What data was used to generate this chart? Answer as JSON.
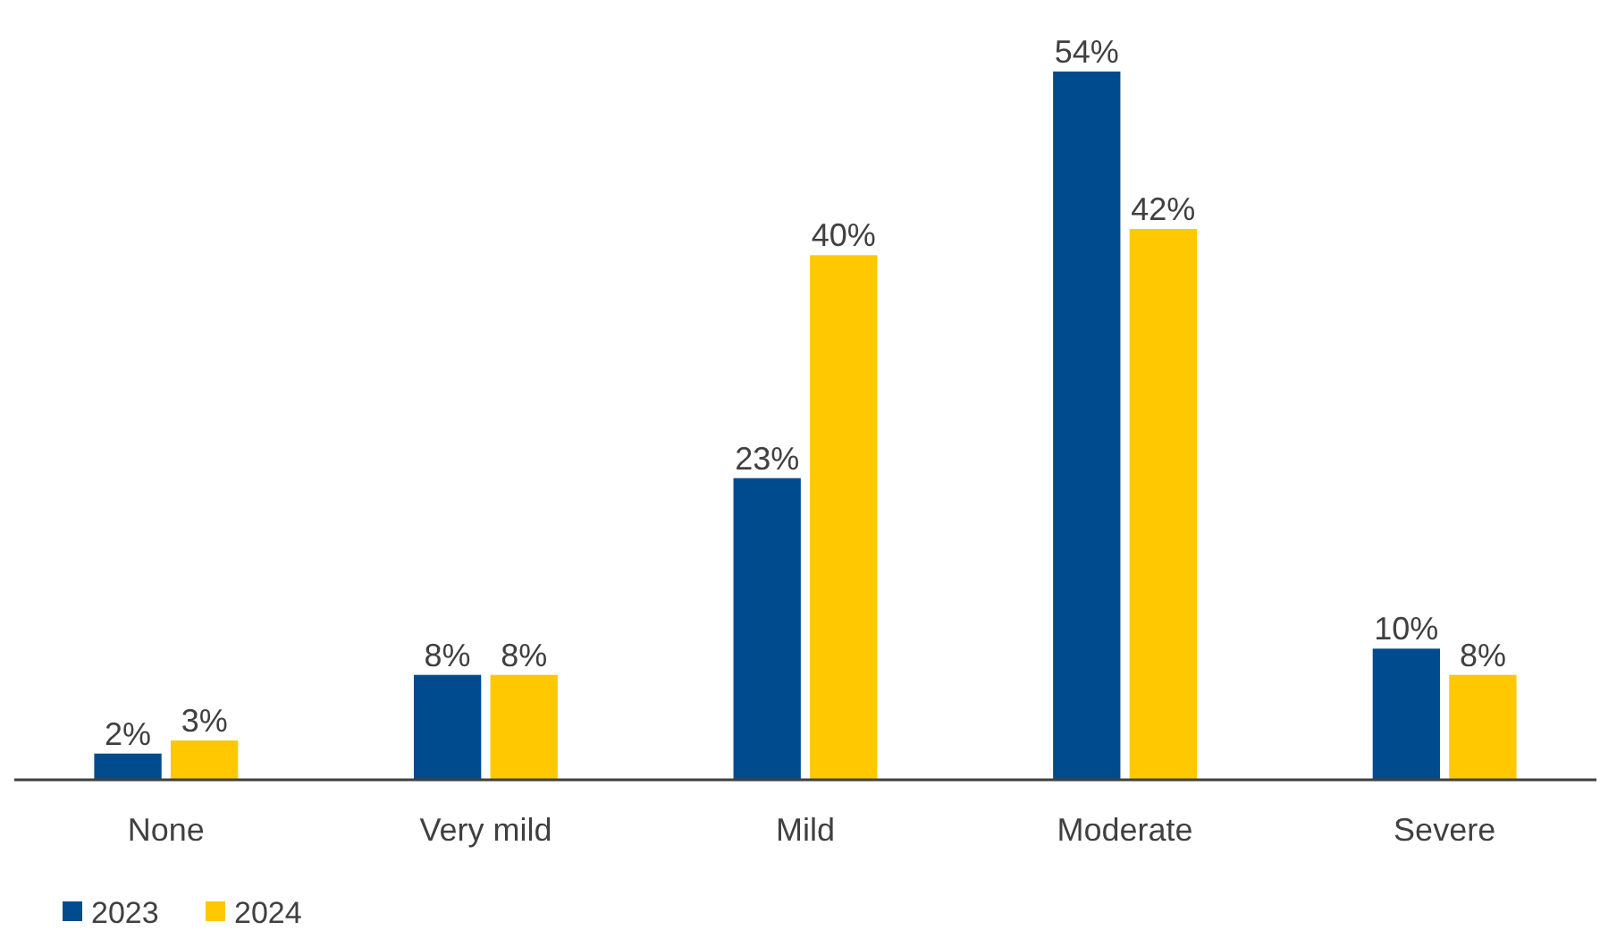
{
  "chart_data": {
    "type": "bar",
    "categories": [
      "None",
      "Very mild",
      "Mild",
      "Moderate",
      "Severe"
    ],
    "series": [
      {
        "name": "2023",
        "color": "#004b8d",
        "values": [
          2,
          8,
          23,
          54,
          10
        ],
        "value_labels": [
          "2%",
          "8%",
          "23%",
          "54%",
          "10%"
        ]
      },
      {
        "name": "2024",
        "color": "#ffc800",
        "values": [
          3,
          8,
          40,
          42,
          8
        ],
        "value_labels": [
          "3%",
          "8%",
          "40%",
          "42%",
          "8%"
        ]
      }
    ],
    "legend": "bottom left",
    "grid": false
  }
}
